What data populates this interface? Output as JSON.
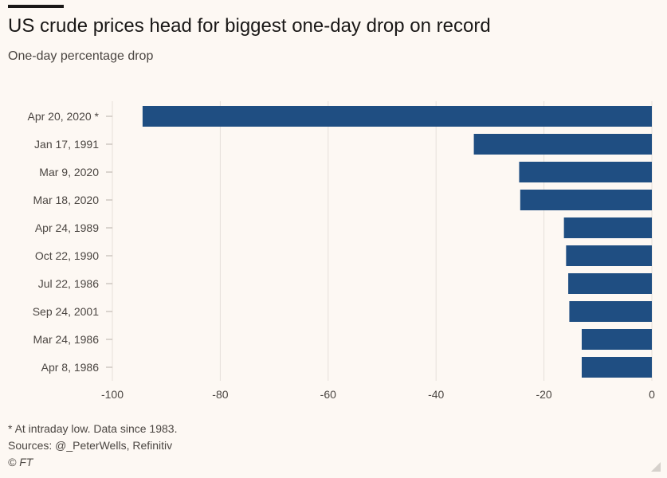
{
  "header": {
    "title": "US crude prices head for biggest one-day drop on record",
    "subtitle": "One-day percentage drop"
  },
  "footer": {
    "note": "* At intraday low. Data since 1983.",
    "sources": "Sources: @_PeterWells, Refinitiv",
    "credit": "© FT"
  },
  "colors": {
    "bar": "#1f4e82",
    "background": "#fdf8f3",
    "grid": "#e6e0da"
  },
  "chart_data": {
    "type": "bar",
    "orientation": "horizontal",
    "categories": [
      "Apr 20, 2020 *",
      "Jan 17, 1991",
      "Mar 9, 2020",
      "Mar 18, 2020",
      "Apr 24, 1989",
      "Oct 22, 1990",
      "Jul 22, 1986",
      "Sep 24, 2001",
      "Mar 24, 1986",
      "Apr 8, 1986"
    ],
    "values": [
      -94.4,
      -33.0,
      -24.6,
      -24.4,
      -16.3,
      -15.9,
      -15.5,
      -15.3,
      -13.0,
      -13.0
    ],
    "title": "US crude prices head for biggest one-day drop on record",
    "subtitle": "One-day percentage drop",
    "xlim": [
      -100,
      0
    ],
    "xticks": [
      -100,
      -80,
      -60,
      -40,
      -20,
      0
    ],
    "grid": true
  }
}
